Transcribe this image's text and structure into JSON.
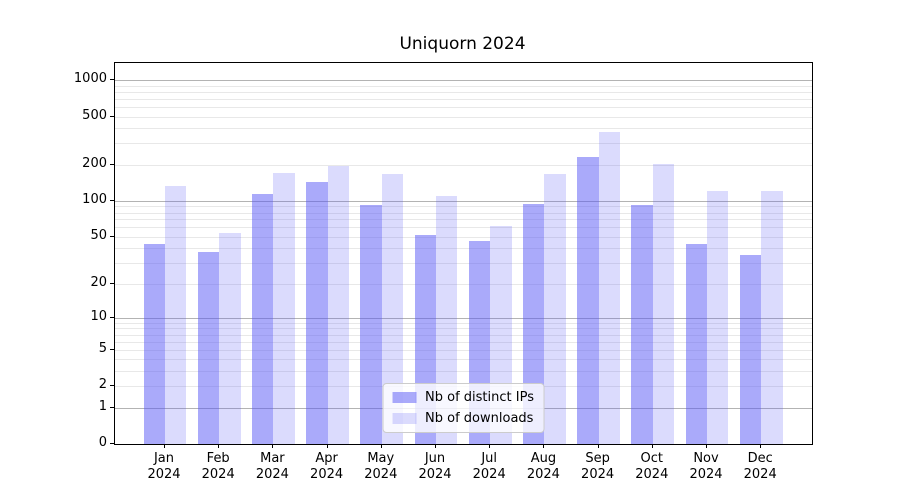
{
  "title": "Uniquorn 2024",
  "chart_data": {
    "type": "bar",
    "title": "Uniquorn 2024",
    "categories": [
      "Jan 2024",
      "Feb 2024",
      "Mar 2024",
      "Apr 2024",
      "May 2024",
      "Jun 2024",
      "Jul 2024",
      "Aug 2024",
      "Sep 2024",
      "Oct 2024",
      "Nov 2024",
      "Dec 2024"
    ],
    "series": [
      {
        "name": "Nb of distinct IPs",
        "color": "#5555f5",
        "alpha": 0.5,
        "rendered_hex": "#aaaaf8",
        "values": [
          44,
          37,
          114,
          145,
          93,
          52,
          46,
          94,
          232,
          92,
          44,
          35
        ]
      },
      {
        "name": "Nb of downloads",
        "color": "#5555f5",
        "alpha": 0.21,
        "rendered_hex": "#dbdbfa",
        "values": [
          134,
          54,
          170,
          194,
          166,
          110,
          62,
          167,
          375,
          204,
          122,
          120
        ]
      }
    ],
    "xlabel": "",
    "ylabel": "",
    "y_axis": {
      "scale": "log(1+x)",
      "ticks": [
        0,
        1,
        2,
        5,
        10,
        20,
        50,
        100,
        200,
        500,
        1000
      ],
      "ylim": [
        0,
        1385
      ],
      "major_gridlines": [
        1,
        10,
        100,
        1000
      ],
      "minor_gridlines": [
        2,
        3,
        4,
        5,
        6,
        7,
        8,
        9,
        20,
        30,
        40,
        50,
        60,
        70,
        80,
        90,
        200,
        300,
        400,
        500,
        600,
        700,
        800,
        900
      ]
    },
    "grid": true,
    "legend_position": "lower center"
  },
  "legend": {
    "items": [
      {
        "label": "Nb of distinct IPs"
      },
      {
        "label": "Nb of downloads"
      }
    ]
  },
  "style": {
    "major_grid_color": "#b3b3b3",
    "minor_grid_color": "#e8e8e8",
    "spine_color": "#000000",
    "background": "#ffffff"
  }
}
